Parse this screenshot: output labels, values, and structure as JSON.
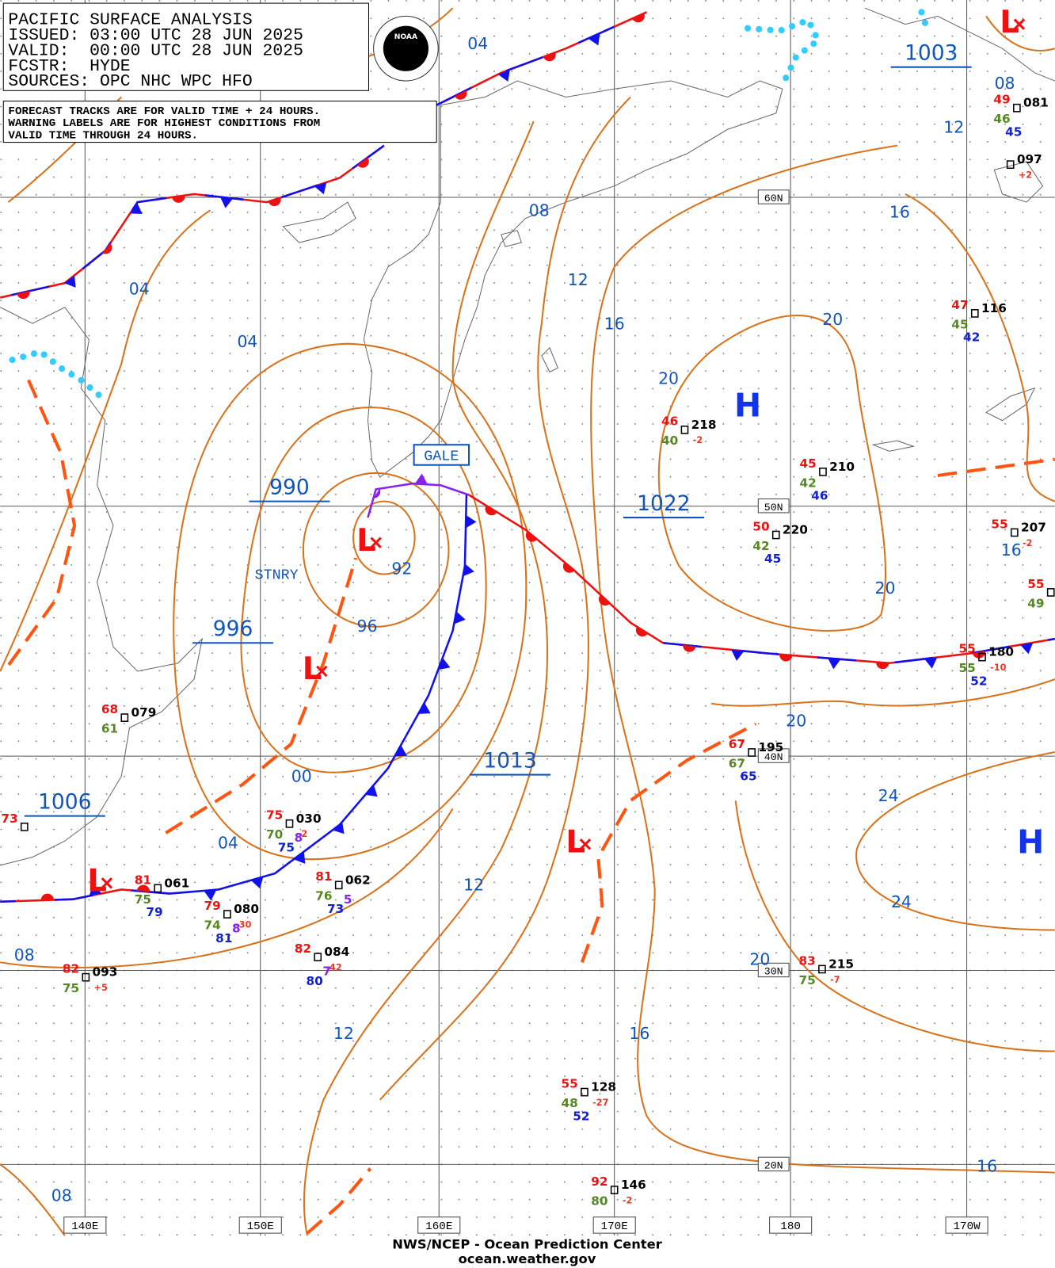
{
  "header": {
    "lines": [
      "PACIFIC SURFACE ANALYSIS",
      "ISSUED: 03:00 UTC 28 JUN 2025",
      "VALID:  00:00 UTC 28 JUN 2025",
      "FCSTR:  HYDE",
      "SOURCES: OPC NHC WPC HFO"
    ],
    "note": [
      "FORECAST TRACKS ARE FOR VALID TIME + 24 HOURS.",
      "WARNING LABELS ARE FOR HIGHEST CONDITIONS FROM",
      "VALID TIME THROUGH 24 HOURS."
    ]
  },
  "logo": "NOAA",
  "grid_labels": {
    "lat": [
      "60N",
      "50N",
      "40N",
      "30N",
      "20N"
    ],
    "lon": [
      "140E",
      "150E",
      "160E",
      "170E",
      "180",
      "170W"
    ]
  },
  "pressure_centers": {
    "highs": [
      "H",
      "H"
    ],
    "lows": [
      "L",
      "L",
      "L",
      "L",
      "L"
    ]
  },
  "central_pressures": [
    "1003",
    "990",
    "996",
    "1006",
    "1013",
    "1022"
  ],
  "isobar_labels": [
    "04",
    "08",
    "12",
    "04",
    "04",
    "08",
    "12",
    "16",
    "16",
    "20",
    "20",
    "92",
    "96",
    "20",
    "20",
    "00",
    "04",
    "24",
    "24",
    "12",
    "08",
    "20",
    "12",
    "16",
    "16",
    "08",
    "16"
  ],
  "front_labels": [
    "STNRY"
  ],
  "warnings": [
    "GALE"
  ],
  "stations": [
    {
      "id": "081",
      "air_temp": "49",
      "dew_point": "46",
      "sea_temp": "45"
    },
    {
      "id": "097",
      "tendency": "+2"
    },
    {
      "id": "116",
      "air_temp": "47",
      "dew_point": "45",
      "sea_temp": "42"
    },
    {
      "id": "218",
      "air_temp": "46",
      "dew_point": "40",
      "tendency": "-2"
    },
    {
      "id": "210",
      "air_temp": "45",
      "dew_point": "42",
      "sea_temp": "46"
    },
    {
      "id": "220",
      "air_temp": "50",
      "dew_point": "42",
      "sea_temp": "45"
    },
    {
      "id": "207",
      "air_temp": "55",
      "tendency": "-2"
    },
    {
      "id": "180",
      "air_temp": "55",
      "dew_point": "55",
      "sea_temp": "52",
      "tendency": "-10"
    },
    {
      "id": "195",
      "air_temp": "67",
      "dew_point": "67",
      "sea_temp": "65"
    },
    {
      "id": "079",
      "air_temp": "68",
      "dew_point": "61"
    },
    {
      "id": "030",
      "air_temp": "75",
      "dew_point": "70",
      "sea_temp": "75",
      "tendency": "-2",
      "visibility": "8"
    },
    {
      "id": "061",
      "air_temp": "81",
      "dew_point": "75",
      "sea_temp": "79"
    },
    {
      "id": "080",
      "air_temp": "79",
      "dew_point": "74",
      "sea_temp": "81",
      "tendency": "-30",
      "visibility": "8"
    },
    {
      "id": "062",
      "air_temp": "81",
      "dew_point": "76",
      "sea_temp": "73",
      "visibility": "5"
    },
    {
      "id": "084",
      "air_temp": "82",
      "sea_temp": "80",
      "tendency": "-42",
      "visibility": "7"
    },
    {
      "id": "093",
      "air_temp": "82",
      "dew_point": "75",
      "tendency": "+5"
    },
    {
      "id": "215",
      "air_temp": "83",
      "dew_point": "75",
      "tendency": "-7"
    },
    {
      "id": "128",
      "air_temp": "55",
      "dew_point": "48",
      "sea_temp": "52",
      "tendency": "-27"
    },
    {
      "id": "146",
      "air_temp": "92",
      "dew_point": "80",
      "tendency": "-2"
    },
    {
      "air_temp": "73"
    },
    {
      "air_temp": "55",
      "dew_point": "49"
    }
  ],
  "footer": [
    "NWS/NCEP - Ocean Prediction Center",
    "ocean.weather.gov"
  ]
}
